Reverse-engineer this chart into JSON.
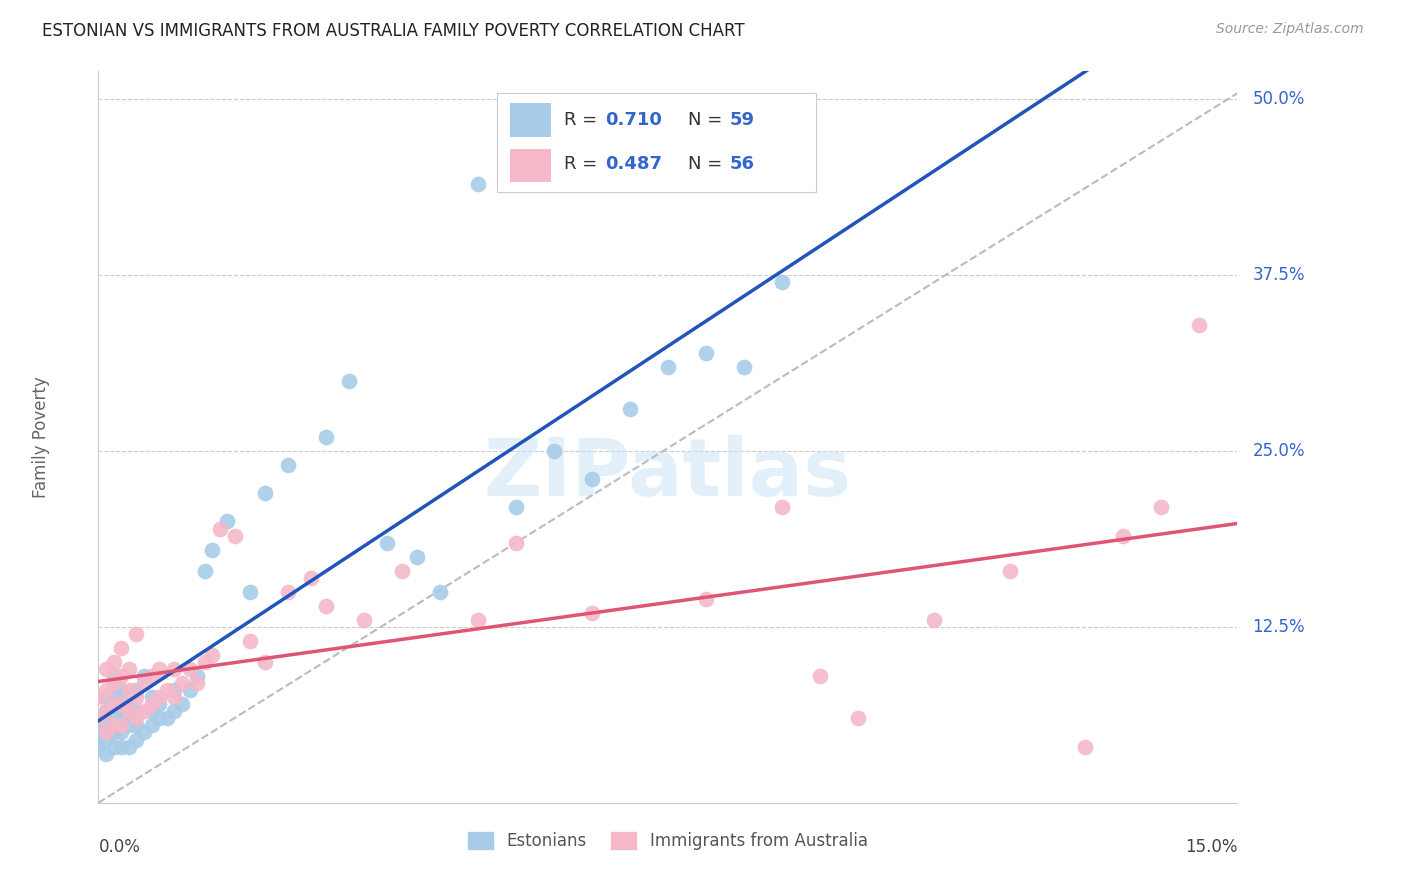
{
  "title": "ESTONIAN VS IMMIGRANTS FROM AUSTRALIA FAMILY POVERTY CORRELATION CHART",
  "source": "Source: ZipAtlas.com",
  "ylabel": "Family Poverty",
  "right_yticks": [
    "50.0%",
    "37.5%",
    "25.0%",
    "12.5%"
  ],
  "right_ytick_vals": [
    0.5,
    0.375,
    0.25,
    0.125
  ],
  "watermark": "ZIPatlas",
  "legend_r1": "0.710",
  "legend_n1": "59",
  "legend_r2": "0.487",
  "legend_n2": "56",
  "legend_label1": "Estonians",
  "legend_label2": "Immigrants from Australia",
  "blue_scatter_color": "#a8cce8",
  "blue_line_color": "#2255bb",
  "pink_scatter_color": "#f5b8c8",
  "pink_line_color": "#e05575",
  "dashed_line_color": "#bbbbbb",
  "background_color": "#ffffff",
  "grid_color": "#cccccc",
  "x_min": 0.0,
  "x_max": 0.15,
  "y_min": 0.0,
  "y_max": 0.52,
  "blue_scatter_x": [
    0.0,
    0.0,
    0.001,
    0.001,
    0.001,
    0.001,
    0.001,
    0.002,
    0.002,
    0.002,
    0.002,
    0.002,
    0.002,
    0.003,
    0.003,
    0.003,
    0.003,
    0.003,
    0.004,
    0.004,
    0.004,
    0.004,
    0.005,
    0.005,
    0.005,
    0.005,
    0.006,
    0.006,
    0.007,
    0.007,
    0.007,
    0.008,
    0.008,
    0.009,
    0.01,
    0.01,
    0.011,
    0.012,
    0.013,
    0.014,
    0.015,
    0.017,
    0.02,
    0.022,
    0.025,
    0.03,
    0.033,
    0.038,
    0.042,
    0.045,
    0.05,
    0.055,
    0.06,
    0.065,
    0.07,
    0.075,
    0.08,
    0.085,
    0.09
  ],
  "blue_scatter_y": [
    0.04,
    0.05,
    0.035,
    0.045,
    0.055,
    0.065,
    0.075,
    0.04,
    0.05,
    0.06,
    0.07,
    0.08,
    0.09,
    0.04,
    0.05,
    0.06,
    0.07,
    0.08,
    0.04,
    0.055,
    0.065,
    0.075,
    0.045,
    0.055,
    0.065,
    0.08,
    0.05,
    0.09,
    0.055,
    0.065,
    0.075,
    0.06,
    0.07,
    0.06,
    0.065,
    0.08,
    0.07,
    0.08,
    0.09,
    0.165,
    0.18,
    0.2,
    0.15,
    0.22,
    0.24,
    0.26,
    0.3,
    0.185,
    0.175,
    0.15,
    0.44,
    0.21,
    0.25,
    0.23,
    0.28,
    0.31,
    0.32,
    0.31,
    0.37
  ],
  "pink_scatter_x": [
    0.0,
    0.0,
    0.001,
    0.001,
    0.001,
    0.001,
    0.002,
    0.002,
    0.002,
    0.002,
    0.003,
    0.003,
    0.003,
    0.003,
    0.004,
    0.004,
    0.004,
    0.005,
    0.005,
    0.005,
    0.006,
    0.006,
    0.007,
    0.007,
    0.008,
    0.008,
    0.009,
    0.01,
    0.01,
    0.011,
    0.012,
    0.013,
    0.014,
    0.015,
    0.016,
    0.018,
    0.02,
    0.022,
    0.025,
    0.028,
    0.03,
    0.035,
    0.04,
    0.05,
    0.055,
    0.065,
    0.08,
    0.09,
    0.095,
    0.1,
    0.11,
    0.12,
    0.13,
    0.135,
    0.14,
    0.145
  ],
  "pink_scatter_y": [
    0.06,
    0.075,
    0.05,
    0.065,
    0.08,
    0.095,
    0.055,
    0.07,
    0.085,
    0.1,
    0.055,
    0.07,
    0.09,
    0.11,
    0.065,
    0.08,
    0.095,
    0.06,
    0.075,
    0.12,
    0.065,
    0.085,
    0.07,
    0.09,
    0.075,
    0.095,
    0.08,
    0.075,
    0.095,
    0.085,
    0.095,
    0.085,
    0.1,
    0.105,
    0.195,
    0.19,
    0.115,
    0.1,
    0.15,
    0.16,
    0.14,
    0.13,
    0.165,
    0.13,
    0.185,
    0.135,
    0.145,
    0.21,
    0.09,
    0.06,
    0.13,
    0.165,
    0.04,
    0.19,
    0.21,
    0.34
  ]
}
